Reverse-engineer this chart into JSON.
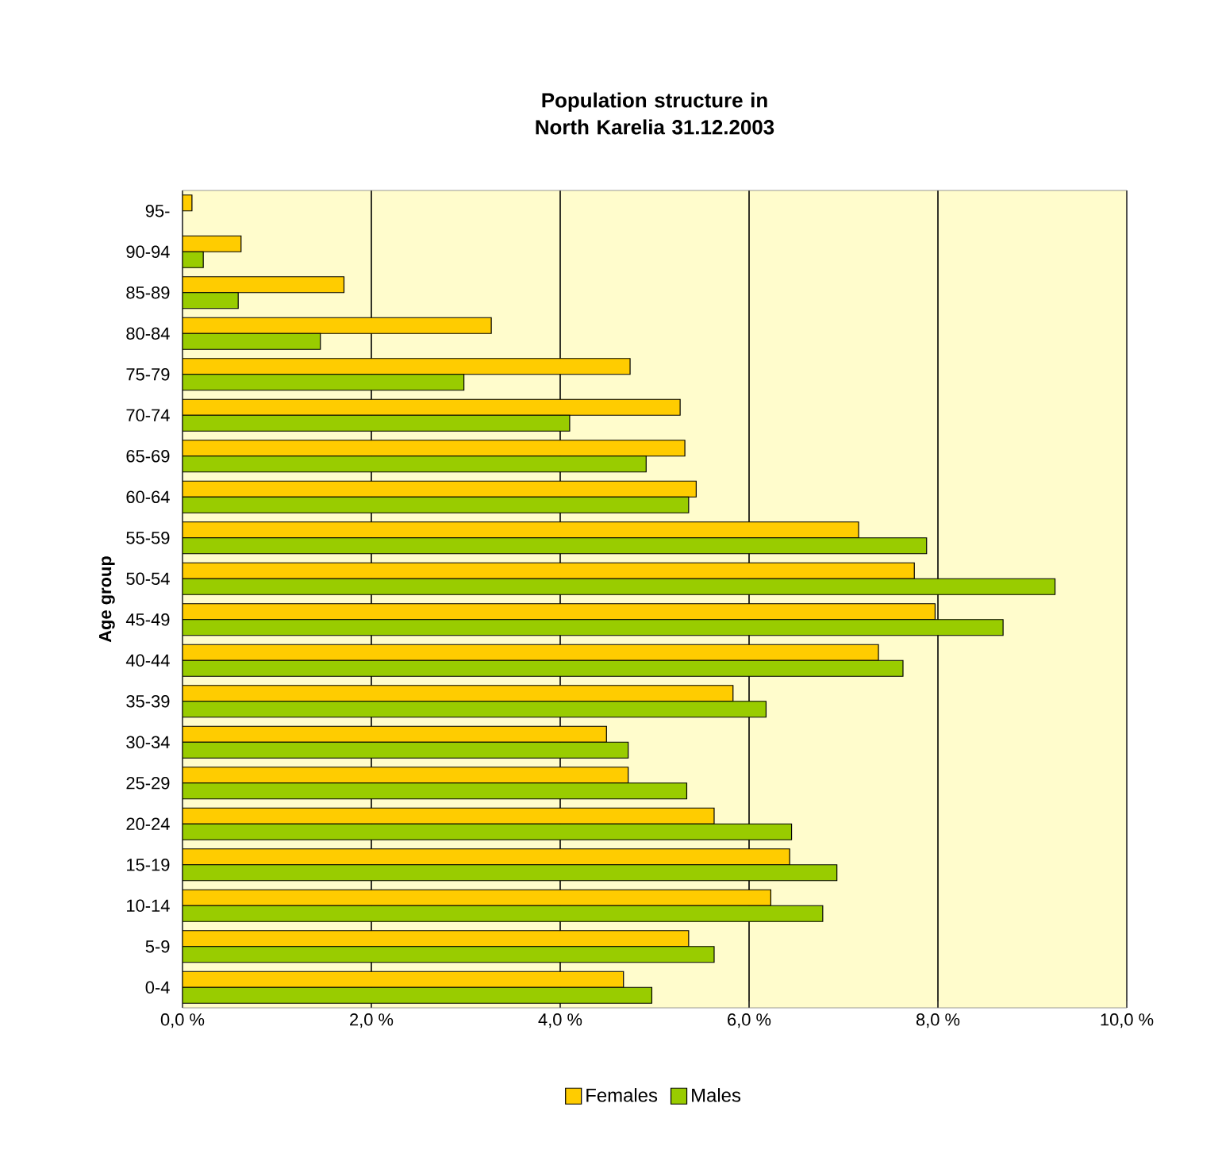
{
  "chart_data": {
    "type": "bar",
    "orientation": "horizontal",
    "title": "Population structure in North Karelia 31.12.2003",
    "ylabel": "Age group",
    "categories": [
      "95-",
      "90-94",
      "85-89",
      "80-84",
      "75-79",
      "70-74",
      "65-69",
      "60-64",
      "55-59",
      "50-54",
      "45-49",
      "40-44",
      "35-39",
      "30-34",
      "25-29",
      "20-24",
      "15-19",
      "10-14",
      "5-9",
      "0-4"
    ],
    "series": [
      {
        "name": "Females",
        "color": "#ffcc00",
        "values": [
          0.1,
          0.62,
          1.71,
          3.27,
          4.74,
          5.27,
          5.32,
          5.44,
          7.16,
          7.75,
          7.97,
          7.37,
          5.83,
          4.49,
          4.72,
          5.63,
          6.43,
          6.23,
          5.36,
          4.67
        ]
      },
      {
        "name": "Males",
        "color": "#99cc00",
        "values": [
          null,
          0.22,
          0.59,
          1.46,
          2.98,
          4.1,
          4.91,
          5.36,
          7.88,
          9.24,
          8.69,
          7.63,
          6.18,
          4.72,
          5.34,
          6.45,
          6.93,
          6.78,
          5.63,
          4.97
        ]
      }
    ],
    "xlim": [
      0,
      10
    ],
    "xticks": [
      {
        "value": 0,
        "label": "0,0 %"
      },
      {
        "value": 2,
        "label": "2,0 %"
      },
      {
        "value": 4,
        "label": "4,0 %"
      },
      {
        "value": 6,
        "label": "6,0 %"
      },
      {
        "value": 8,
        "label": "8,0 %"
      },
      {
        "value": 10,
        "label": "10,0 %"
      }
    ],
    "grid": "x",
    "legend": "bottom"
  }
}
